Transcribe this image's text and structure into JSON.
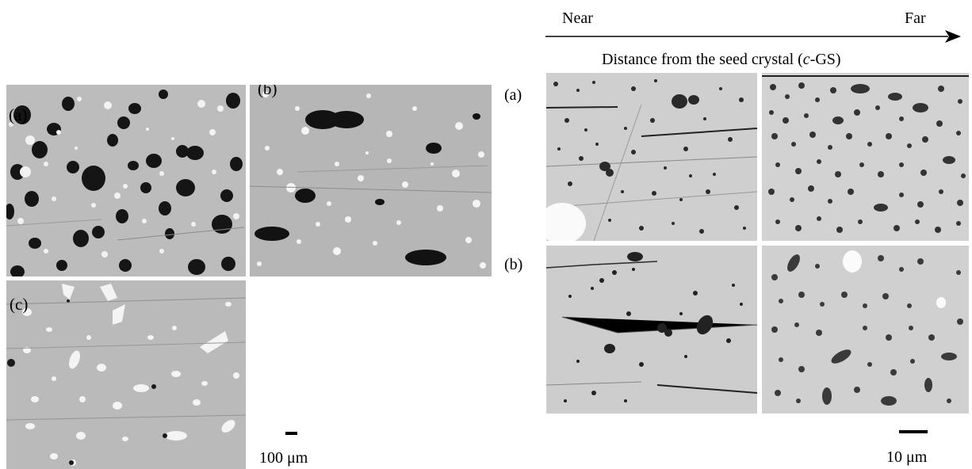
{
  "left_figure": {
    "panels": [
      {
        "label": "(a)"
      },
      {
        "label": "(b)"
      },
      {
        "label": "(c)"
      }
    ],
    "scale_bar_label": "100 μm"
  },
  "right_figure": {
    "arrow_start_label": "Near",
    "arrow_end_label": "Far",
    "distance_caption_prefix": "Distance from the seed crystal (",
    "distance_caption_italic": "c",
    "distance_caption_suffix": "-GS)",
    "row_labels": [
      "(a)",
      "(b)"
    ],
    "scale_bar_label": "10 μm"
  }
}
